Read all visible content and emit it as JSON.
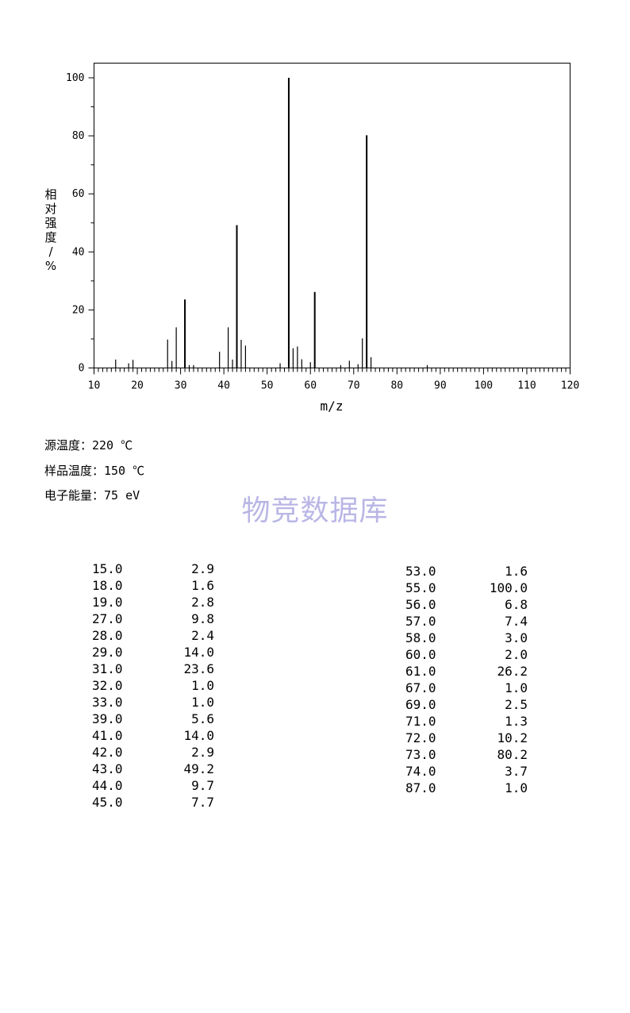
{
  "chart_data": {
    "type": "bar",
    "xlabel": "m/z",
    "ylabel": "相对强度/%",
    "xlim": [
      10,
      120
    ],
    "ylim": [
      0,
      105
    ],
    "x_ticks": [
      "10",
      "20",
      "30",
      "40",
      "50",
      "60",
      "70",
      "80",
      "90",
      "100",
      "110",
      "120"
    ],
    "y_ticks": [
      "0",
      "20",
      "40",
      "60",
      "80",
      "100"
    ],
    "grid": false,
    "peaks": [
      {
        "mz": 15,
        "intensity": 2.9
      },
      {
        "mz": 18,
        "intensity": 1.6
      },
      {
        "mz": 19,
        "intensity": 2.8
      },
      {
        "mz": 27,
        "intensity": 9.8
      },
      {
        "mz": 28,
        "intensity": 2.4
      },
      {
        "mz": 29,
        "intensity": 14.0
      },
      {
        "mz": 31,
        "intensity": 23.6
      },
      {
        "mz": 32,
        "intensity": 1.0
      },
      {
        "mz": 33,
        "intensity": 1.0
      },
      {
        "mz": 39,
        "intensity": 5.6
      },
      {
        "mz": 41,
        "intensity": 14.0
      },
      {
        "mz": 42,
        "intensity": 2.9
      },
      {
        "mz": 43,
        "intensity": 49.2
      },
      {
        "mz": 44,
        "intensity": 9.7
      },
      {
        "mz": 45,
        "intensity": 7.7
      },
      {
        "mz": 53,
        "intensity": 1.6
      },
      {
        "mz": 55,
        "intensity": 100.0
      },
      {
        "mz": 56,
        "intensity": 6.8
      },
      {
        "mz": 57,
        "intensity": 7.4
      },
      {
        "mz": 58,
        "intensity": 3.0
      },
      {
        "mz": 60,
        "intensity": 2.0
      },
      {
        "mz": 61,
        "intensity": 26.2
      },
      {
        "mz": 67,
        "intensity": 1.0
      },
      {
        "mz": 69,
        "intensity": 2.5
      },
      {
        "mz": 71,
        "intensity": 1.3
      },
      {
        "mz": 72,
        "intensity": 10.2
      },
      {
        "mz": 73,
        "intensity": 80.2
      },
      {
        "mz": 74,
        "intensity": 3.7
      },
      {
        "mz": 87,
        "intensity": 1.0
      }
    ]
  },
  "conditions": {
    "source_temp": "源温度：220 ℃",
    "sample_temp": "样品温度：150 ℃",
    "electron_energy": "电子能量：75 eV"
  },
  "watermark": "物竞数据库",
  "peak_table": {
    "left": [
      [
        "15.0",
        "2.9"
      ],
      [
        "18.0",
        "1.6"
      ],
      [
        "19.0",
        "2.8"
      ],
      [
        "27.0",
        "9.8"
      ],
      [
        "28.0",
        "2.4"
      ],
      [
        "29.0",
        "14.0"
      ],
      [
        "31.0",
        "23.6"
      ],
      [
        "32.0",
        "1.0"
      ],
      [
        "33.0",
        "1.0"
      ],
      [
        "39.0",
        "5.6"
      ],
      [
        "41.0",
        "14.0"
      ],
      [
        "42.0",
        "2.9"
      ],
      [
        "43.0",
        "49.2"
      ],
      [
        "44.0",
        "9.7"
      ],
      [
        "45.0",
        "7.7"
      ]
    ],
    "right": [
      [
        "53.0",
        "1.6"
      ],
      [
        "55.0",
        "100.0"
      ],
      [
        "56.0",
        "6.8"
      ],
      [
        "57.0",
        "7.4"
      ],
      [
        "58.0",
        "3.0"
      ],
      [
        "60.0",
        "2.0"
      ],
      [
        "61.0",
        "26.2"
      ],
      [
        "67.0",
        "1.0"
      ],
      [
        "69.0",
        "2.5"
      ],
      [
        "71.0",
        "1.3"
      ],
      [
        "72.0",
        "10.2"
      ],
      [
        "73.0",
        "80.2"
      ],
      [
        "74.0",
        "3.7"
      ],
      [
        "87.0",
        "1.0"
      ]
    ]
  }
}
